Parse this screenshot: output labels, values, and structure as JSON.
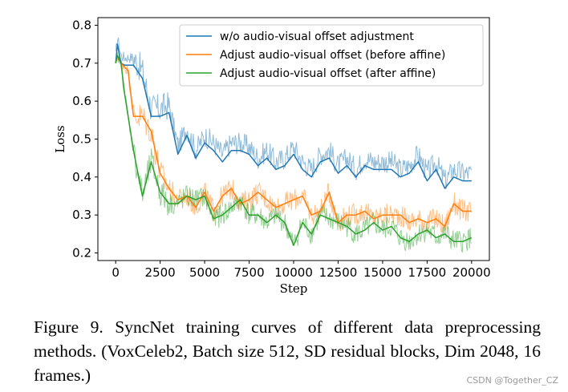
{
  "chart_data": {
    "type": "line",
    "title": "",
    "xlabel": "Step",
    "ylabel": "Loss",
    "xlim": [
      -1000,
      21000
    ],
    "ylim": [
      0.18,
      0.82
    ],
    "xticks": [
      0,
      2500,
      5000,
      7500,
      10000,
      12500,
      15000,
      17500,
      20000
    ],
    "xtick_labels": [
      "0",
      "2500",
      "5000",
      "7500",
      "10000",
      "12500",
      "15000",
      "17500",
      "20000"
    ],
    "yticks": [
      0.2,
      0.3,
      0.4,
      0.5,
      0.6,
      0.7,
      0.8
    ],
    "ytick_labels": [
      "0.2",
      "0.3",
      "0.4",
      "0.5",
      "0.6",
      "0.7",
      "0.8"
    ],
    "legend_position": "top-right",
    "series": [
      {
        "name": "w/o audio-visual offset adjustment",
        "color": "#1f77b4",
        "x": [
          0,
          100,
          300,
          500,
          1000,
          1500,
          2000,
          2500,
          3000,
          3500,
          4000,
          4500,
          5000,
          5500,
          6000,
          6500,
          7000,
          7500,
          8000,
          8500,
          9000,
          9500,
          10000,
          10500,
          11000,
          11500,
          12000,
          12500,
          13000,
          13500,
          14000,
          14500,
          15000,
          15500,
          16000,
          16500,
          17000,
          17500,
          18000,
          18500,
          19000,
          19500,
          20000
        ],
        "values": [
          0.7,
          0.75,
          0.7,
          0.695,
          0.695,
          0.66,
          0.56,
          0.56,
          0.57,
          0.46,
          0.51,
          0.45,
          0.49,
          0.47,
          0.44,
          0.47,
          0.47,
          0.46,
          0.43,
          0.45,
          0.42,
          0.43,
          0.46,
          0.42,
          0.4,
          0.44,
          0.45,
          0.41,
          0.43,
          0.4,
          0.43,
          0.42,
          0.42,
          0.42,
          0.4,
          0.41,
          0.44,
          0.39,
          0.42,
          0.37,
          0.4,
          0.39,
          0.39
        ]
      },
      {
        "name": "Adjust audio-visual offset (before affine)",
        "color": "#ff7f0e",
        "x": [
          0,
          100,
          300,
          500,
          700,
          1000,
          1500,
          2000,
          2500,
          3000,
          3500,
          4000,
          4500,
          5000,
          5500,
          6000,
          6500,
          7000,
          7500,
          8000,
          8500,
          9000,
          9500,
          10000,
          10500,
          11000,
          11500,
          12000,
          12500,
          13000,
          13500,
          14000,
          14500,
          15000,
          15500,
          16000,
          16500,
          17000,
          17500,
          18000,
          18500,
          19000,
          19500,
          20000
        ],
        "values": [
          0.7,
          0.72,
          0.7,
          0.69,
          0.68,
          0.56,
          0.56,
          0.52,
          0.41,
          0.37,
          0.34,
          0.35,
          0.32,
          0.36,
          0.31,
          0.35,
          0.37,
          0.33,
          0.34,
          0.36,
          0.34,
          0.32,
          0.33,
          0.34,
          0.35,
          0.3,
          0.31,
          0.36,
          0.28,
          0.3,
          0.3,
          0.31,
          0.29,
          0.3,
          0.3,
          0.3,
          0.28,
          0.29,
          0.28,
          0.29,
          0.27,
          0.33,
          0.31,
          0.31
        ]
      },
      {
        "name": "Adjust audio-visual offset (after affine)",
        "color": "#2ca02c",
        "x": [
          0,
          100,
          300,
          500,
          700,
          1000,
          1500,
          2000,
          2500,
          3000,
          3500,
          4000,
          4500,
          5000,
          5500,
          6000,
          6500,
          7000,
          7500,
          8000,
          8500,
          9000,
          9500,
          10000,
          10500,
          11000,
          11500,
          12000,
          12500,
          13000,
          13500,
          14000,
          14500,
          15000,
          15500,
          16000,
          16500,
          17000,
          17500,
          18000,
          18500,
          19000,
          19500,
          20000
        ],
        "values": [
          0.7,
          0.72,
          0.7,
          0.62,
          0.56,
          0.47,
          0.35,
          0.44,
          0.36,
          0.33,
          0.33,
          0.35,
          0.34,
          0.35,
          0.29,
          0.3,
          0.32,
          0.34,
          0.3,
          0.3,
          0.28,
          0.3,
          0.28,
          0.22,
          0.28,
          0.25,
          0.3,
          0.29,
          0.28,
          0.27,
          0.25,
          0.26,
          0.28,
          0.26,
          0.27,
          0.24,
          0.23,
          0.25,
          0.26,
          0.24,
          0.25,
          0.23,
          0.23,
          0.24
        ]
      }
    ]
  },
  "caption": "Figure 9.  SyncNet training curves of different data preprocessing methods.  (VoxCeleb2, Batch size 512, SD residual blocks, Dim 2048, 16 frames.)",
  "watermark": "CSDN @Together_CZ"
}
